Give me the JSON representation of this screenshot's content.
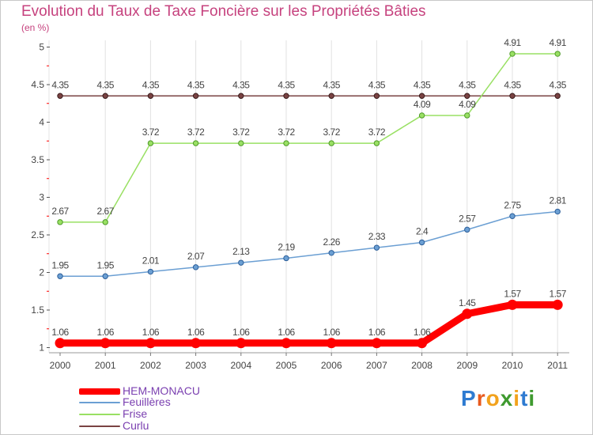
{
  "title": "Evolution du Taux de Taxe Foncière sur les Propriétés Bâties",
  "unit_label": "(en %)",
  "logo": {
    "text": "Proxiti",
    "colors": [
      "#2e7bd1",
      "#e85a1e",
      "#f2a21c",
      "#3f9a2f",
      "#f2a21c",
      "#2e7bd1",
      "#3f9a2f"
    ]
  },
  "chart_data": {
    "type": "line",
    "x": [
      "2000",
      "2001",
      "2002",
      "2003",
      "2004",
      "2005",
      "2006",
      "2007",
      "2008",
      "2009",
      "2010",
      "2011"
    ],
    "ylim": [
      1,
      5
    ],
    "yticks": [
      "1",
      "1.5",
      "2",
      "2.5",
      "3",
      "3.5",
      "4",
      "4.5",
      "5"
    ],
    "series": [
      {
        "name": "HEM-MONACU",
        "color": "#ff0000",
        "values": [
          1.06,
          1.06,
          1.06,
          1.06,
          1.06,
          1.06,
          1.06,
          1.06,
          1.06,
          1.45,
          1.57,
          1.57
        ],
        "labels": [
          "1.06",
          "1.06",
          "1.06",
          "1.06",
          "1.06",
          "1.06",
          "1.06",
          "1.06",
          "1.06",
          "1.45",
          "1.57",
          "1.57"
        ]
      },
      {
        "name": "Feuillères",
        "color": "#6b9fd3",
        "values": [
          1.95,
          1.95,
          2.01,
          2.07,
          2.13,
          2.19,
          2.26,
          2.33,
          2.4,
          2.57,
          2.75,
          2.81
        ],
        "labels": [
          "1.95",
          "1.95",
          "2.01",
          "2.07",
          "2.13",
          "2.19",
          "2.26",
          "2.33",
          "2.4",
          "2.57",
          "2.75",
          "2.81"
        ]
      },
      {
        "name": "Frise",
        "color": "#99e063",
        "values": [
          2.67,
          2.67,
          3.72,
          3.72,
          3.72,
          3.72,
          3.72,
          3.72,
          4.09,
          4.09,
          4.91,
          4.91
        ],
        "labels": [
          "2.67",
          "2.67",
          "3.72",
          "3.72",
          "3.72",
          "3.72",
          "3.72",
          "3.72",
          "4.09",
          "4.09",
          "4.91",
          "4.91"
        ]
      },
      {
        "name": "Curlu",
        "color": "#7a4343",
        "values": [
          4.35,
          4.35,
          4.35,
          4.35,
          4.35,
          4.35,
          4.35,
          4.35,
          4.35,
          4.35,
          4.35,
          4.35
        ],
        "labels": [
          "4.35",
          "4.35",
          "4.35",
          "4.35",
          "4.35",
          "4.35",
          "4.35",
          "4.35",
          "4.35",
          "4.35",
          "4.35",
          "4.35"
        ]
      }
    ]
  }
}
